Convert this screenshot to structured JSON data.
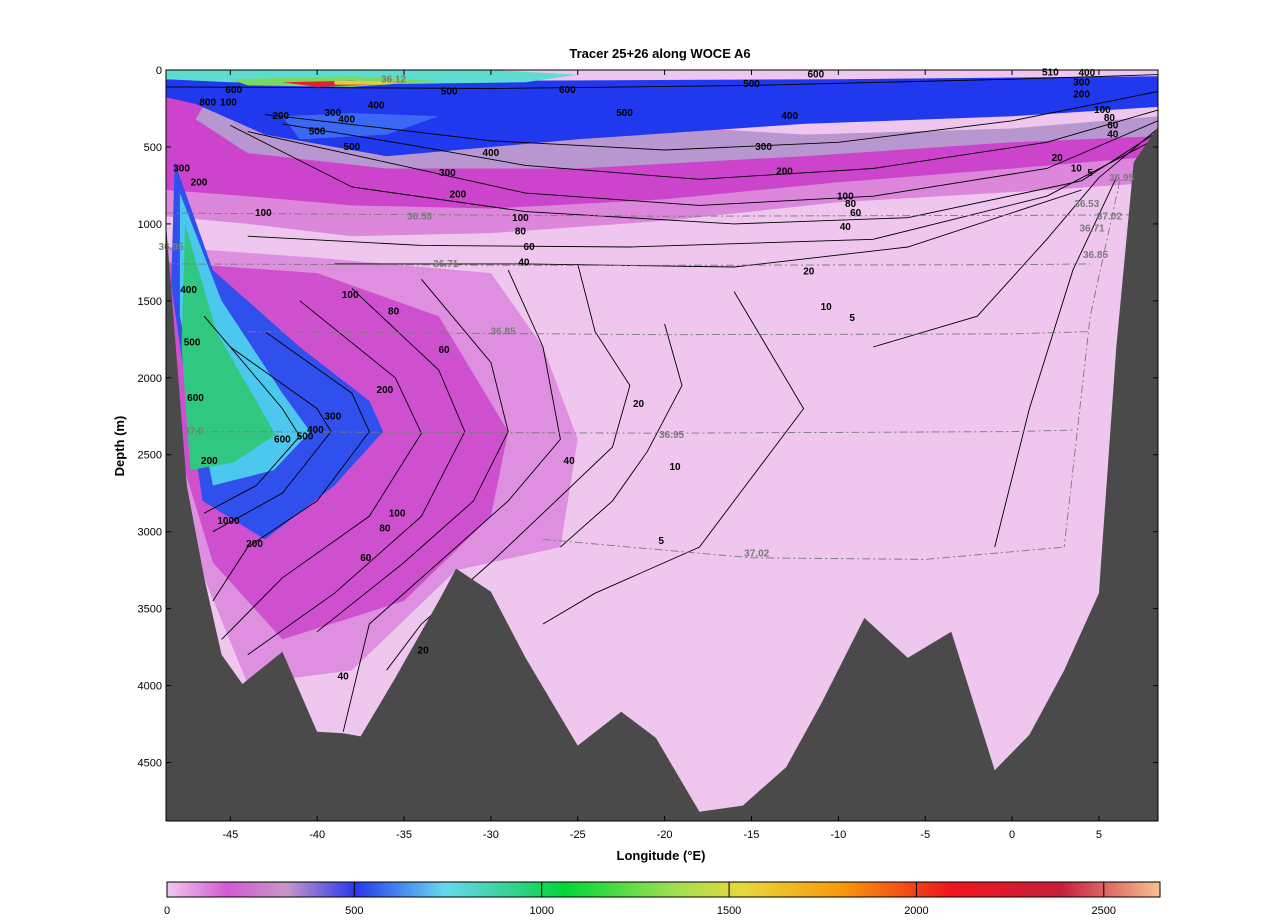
{
  "chart_data": {
    "type": "heatmap",
    "title": "Tracer 25+26 along WOCE A6",
    "xlabel": "Longitude (°E)",
    "ylabel": "Depth (m)",
    "xlim": [
      -48.7,
      8.4
    ],
    "ylim": [
      4880,
      0
    ],
    "x_ticks": [
      -45,
      -40,
      -35,
      -30,
      -25,
      -20,
      -15,
      -10,
      -5,
      0,
      5
    ],
    "y_ticks": [
      0,
      500,
      1000,
      1500,
      2000,
      2500,
      3000,
      3500,
      4000,
      4500
    ],
    "colorbar": {
      "ticks": [
        0,
        500,
        1000,
        1500,
        2000,
        2500
      ],
      "range": [
        0,
        2650
      ]
    },
    "bathymetry": [
      [
        -48.7,
        1000
      ],
      [
        -47.5,
        2700
      ],
      [
        -46.5,
        3300
      ],
      [
        -45.5,
        3800
      ],
      [
        -44.3,
        3990
      ],
      [
        -42,
        3780
      ],
      [
        -40,
        4300
      ],
      [
        -38.5,
        4310
      ],
      [
        -37.5,
        4330
      ],
      [
        -35.5,
        3950
      ],
      [
        -33,
        3450
      ],
      [
        -32,
        3240
      ],
      [
        -30,
        3390
      ],
      [
        -28,
        3820
      ],
      [
        -25,
        4390
      ],
      [
        -22.5,
        4170
      ],
      [
        -20.5,
        4340
      ],
      [
        -18,
        4820
      ],
      [
        -15.5,
        4780
      ],
      [
        -13,
        4530
      ],
      [
        -11,
        4120
      ],
      [
        -8.5,
        3560
      ],
      [
        -6,
        3820
      ],
      [
        -3.5,
        3650
      ],
      [
        -1,
        4550
      ],
      [
        1,
        4320
      ],
      [
        3,
        3900
      ],
      [
        5,
        3400
      ],
      [
        6,
        1800
      ],
      [
        7,
        600
      ],
      [
        8.4,
        370
      ]
    ],
    "contour_levels": [
      5,
      10,
      20,
      40,
      60,
      80,
      100,
      200,
      300,
      400,
      500,
      600,
      1000
    ],
    "contour_labels": [
      {
        "text": "600",
        "lon": -44.8,
        "depth": 150
      },
      {
        "text": "800",
        "lon": -46.3,
        "depth": 230
      },
      {
        "text": "100",
        "lon": -45.1,
        "depth": 230
      },
      {
        "text": "200",
        "lon": -42.1,
        "depth": 320
      },
      {
        "text": "300",
        "lon": -39.1,
        "depth": 300
      },
      {
        "text": "400",
        "lon": -36.6,
        "depth": 250
      },
      {
        "text": "400",
        "lon": -38.3,
        "depth": 340
      },
      {
        "text": "500",
        "lon": -40.0,
        "depth": 420
      },
      {
        "text": "500",
        "lon": -38.0,
        "depth": 520
      },
      {
        "text": "500",
        "lon": -32.4,
        "depth": 160
      },
      {
        "text": "600",
        "lon": -25.6,
        "depth": 150
      },
      {
        "text": "600",
        "lon": -11.3,
        "depth": 50
      },
      {
        "text": "500",
        "lon": -15.0,
        "depth": 110
      },
      {
        "text": "500",
        "lon": -22.3,
        "depth": 300
      },
      {
        "text": "400",
        "lon": -12.8,
        "depth": 320
      },
      {
        "text": "300",
        "lon": -14.3,
        "depth": 520
      },
      {
        "text": "200",
        "lon": -13.1,
        "depth": 680
      },
      {
        "text": "400",
        "lon": -30.0,
        "depth": 560
      },
      {
        "text": "300",
        "lon": -32.5,
        "depth": 690
      },
      {
        "text": "200",
        "lon": -31.9,
        "depth": 830
      },
      {
        "text": "100",
        "lon": -43.1,
        "depth": 950
      },
      {
        "text": "100",
        "lon": -28.3,
        "depth": 980
      },
      {
        "text": "80",
        "lon": -28.3,
        "depth": 1070
      },
      {
        "text": "60",
        "lon": -27.8,
        "depth": 1170
      },
      {
        "text": "40",
        "lon": -28.1,
        "depth": 1270
      },
      {
        "text": "100",
        "lon": -9.6,
        "depth": 840
      },
      {
        "text": "80",
        "lon": -9.3,
        "depth": 890
      },
      {
        "text": "60",
        "lon": -9.0,
        "depth": 950
      },
      {
        "text": "40",
        "lon": -9.6,
        "depth": 1040
      },
      {
        "text": "20",
        "lon": -11.7,
        "depth": 1330
      },
      {
        "text": "10",
        "lon": -10.7,
        "depth": 1560
      },
      {
        "text": "5",
        "lon": -9.2,
        "depth": 1630
      },
      {
        "text": "20",
        "lon": 2.6,
        "depth": 590
      },
      {
        "text": "10",
        "lon": 3.7,
        "depth": 660
      },
      {
        "text": "5",
        "lon": 4.5,
        "depth": 690
      },
      {
        "text": "200",
        "lon": 4.0,
        "depth": 180
      },
      {
        "text": "300",
        "lon": 4.0,
        "depth": 100
      },
      {
        "text": "400",
        "lon": 4.3,
        "depth": 40
      },
      {
        "text": "510",
        "lon": 2.2,
        "depth": 35
      },
      {
        "text": "100",
        "lon": 5.2,
        "depth": 280
      },
      {
        "text": "80",
        "lon": 5.6,
        "depth": 330
      },
      {
        "text": "60",
        "lon": 5.8,
        "depth": 380
      },
      {
        "text": "40",
        "lon": 5.8,
        "depth": 440
      },
      {
        "text": "100",
        "lon": -38.1,
        "depth": 1480
      },
      {
        "text": "80",
        "lon": -35.6,
        "depth": 1590
      },
      {
        "text": "60",
        "lon": -32.7,
        "depth": 1840
      },
      {
        "text": "200",
        "lon": -36.1,
        "depth": 2100
      },
      {
        "text": "300",
        "lon": -39.1,
        "depth": 2270
      },
      {
        "text": "400",
        "lon": -40.1,
        "depth": 2360
      },
      {
        "text": "500",
        "lon": -40.7,
        "depth": 2400
      },
      {
        "text": "600",
        "lon": -42.0,
        "depth": 2420
      },
      {
        "text": "20",
        "lon": -21.5,
        "depth": 2190
      },
      {
        "text": "10",
        "lon": -19.4,
        "depth": 2600
      },
      {
        "text": "40",
        "lon": -25.5,
        "depth": 2560
      },
      {
        "text": "100",
        "lon": -35.4,
        "depth": 2900
      },
      {
        "text": "80",
        "lon": -36.1,
        "depth": 3000
      },
      {
        "text": "60",
        "lon": -37.2,
        "depth": 3190
      },
      {
        "text": "200",
        "lon": -43.6,
        "depth": 3100
      },
      {
        "text": "1000",
        "lon": -45.1,
        "depth": 2950
      },
      {
        "text": "5",
        "lon": -20.2,
        "depth": 3080
      },
      {
        "text": "20",
        "lon": -33.9,
        "depth": 3790
      },
      {
        "text": "40",
        "lon": -38.5,
        "depth": 3960
      },
      {
        "text": "300",
        "lon": -47.8,
        "depth": 660
      },
      {
        "text": "200",
        "lon": -46.8,
        "depth": 750
      },
      {
        "text": "400",
        "lon": -47.4,
        "depth": 1450
      },
      {
        "text": "500",
        "lon": -47.2,
        "depth": 1790
      },
      {
        "text": "600",
        "lon": -47.0,
        "depth": 2150
      },
      {
        "text": "200",
        "lon": -46.2,
        "depth": 2560
      }
    ],
    "density_labels": [
      {
        "text": "36.12",
        "lon": -35.6,
        "depth": 80
      },
      {
        "text": "36.53",
        "lon": -34.1,
        "depth": 970
      },
      {
        "text": "36.71",
        "lon": -32.6,
        "depth": 1280
      },
      {
        "text": "36.85",
        "lon": -29.3,
        "depth": 1720
      },
      {
        "text": "37.0",
        "lon": -47.1,
        "depth": 2370
      },
      {
        "text": "36.95",
        "lon": -19.6,
        "depth": 2390
      },
      {
        "text": "37.02",
        "lon": -14.7,
        "depth": 3160
      },
      {
        "text": "36.53",
        "lon": 4.3,
        "depth": 890
      },
      {
        "text": "37.02",
        "lon": 5.6,
        "depth": 970
      },
      {
        "text": "36.71",
        "lon": 4.6,
        "depth": 1050
      },
      {
        "text": "36.85",
        "lon": 4.8,
        "depth": 1220
      },
      {
        "text": "36.95",
        "lon": 6.3,
        "depth": 720
      },
      {
        "text": "36.95",
        "lon": -48.4,
        "depth": 1170
      }
    ]
  }
}
